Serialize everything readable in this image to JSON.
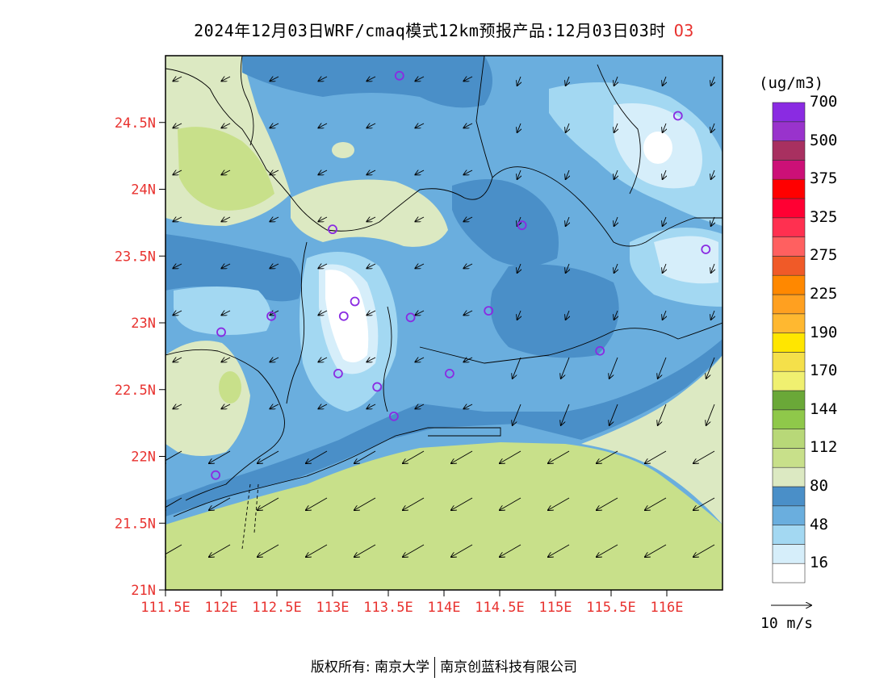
{
  "title": {
    "main": "2024年12月03日WRF/cmaq模式12km预报产品:12月03日03时",
    "species": "O3"
  },
  "map": {
    "lat_ticks": [
      {
        "value": 24.5,
        "label": "24.5N"
      },
      {
        "value": 24.0,
        "label": "24N"
      },
      {
        "value": 23.5,
        "label": "23.5N"
      },
      {
        "value": 23.0,
        "label": "23N"
      },
      {
        "value": 22.5,
        "label": "22.5N"
      },
      {
        "value": 22.0,
        "label": "22N"
      },
      {
        "value": 21.5,
        "label": "21.5N"
      },
      {
        "value": 21.0,
        "label": "21N"
      }
    ],
    "lon_ticks": [
      {
        "value": 111.5,
        "label": "111.5E"
      },
      {
        "value": 112.0,
        "label": "112E"
      },
      {
        "value": 112.5,
        "label": "112.5E"
      },
      {
        "value": 113.0,
        "label": "113E"
      },
      {
        "value": 113.5,
        "label": "113.5E"
      },
      {
        "value": 114.0,
        "label": "114E"
      },
      {
        "value": 114.5,
        "label": "114.5E"
      },
      {
        "value": 115.0,
        "label": "115E"
      },
      {
        "value": 115.5,
        "label": "115.5E"
      },
      {
        "value": 116.0,
        "label": "116E"
      }
    ],
    "lon_range": [
      111.5,
      116.5
    ],
    "lat_range": [
      21.0,
      25.0
    ],
    "stations": [
      {
        "lon": 113.6,
        "lat": 24.85
      },
      {
        "lon": 116.1,
        "lat": 24.55
      },
      {
        "lon": 113.0,
        "lat": 23.7
      },
      {
        "lon": 114.7,
        "lat": 23.73
      },
      {
        "lon": 116.35,
        "lat": 23.55
      },
      {
        "lon": 112.45,
        "lat": 23.05
      },
      {
        "lon": 112.0,
        "lat": 22.93
      },
      {
        "lon": 113.1,
        "lat": 23.05
      },
      {
        "lon": 113.2,
        "lat": 23.16
      },
      {
        "lon": 113.7,
        "lat": 23.04
      },
      {
        "lon": 114.4,
        "lat": 23.09
      },
      {
        "lon": 115.4,
        "lat": 22.79
      },
      {
        "lon": 113.05,
        "lat": 22.62
      },
      {
        "lon": 113.4,
        "lat": 22.52
      },
      {
        "lon": 114.05,
        "lat": 22.62
      },
      {
        "lon": 113.55,
        "lat": 22.3
      },
      {
        "lon": 111.95,
        "lat": 21.86
      }
    ]
  },
  "colorbar": {
    "unit": "(ug/m3)",
    "colors": [
      "#ffffff",
      "#d6eefa",
      "#a3d8f2",
      "#6aaede",
      "#4a8fc8",
      "#dce9c2",
      "#c8e08a",
      "#b8d878",
      "#8fc84a",
      "#6aa838",
      "#f0f070",
      "#f5e04a",
      "#ffe600",
      "#ffb830",
      "#ffa020",
      "#ff8800",
      "#f05a28",
      "#ff6060",
      "#ff3050",
      "#ff0033",
      "#ff0000",
      "#cc1077",
      "#a83060",
      "#9933cc",
      "#8a2be2"
    ],
    "labels": [
      "16",
      "48",
      "80",
      "112",
      "144",
      "170",
      "190",
      "225",
      "275",
      "325",
      "375",
      "500",
      "700"
    ]
  },
  "wind_reference": {
    "label": "10 m/s"
  },
  "copyright": {
    "left": "版权所有: 南京大学",
    "right": "南京创蓝科技有限公司"
  }
}
